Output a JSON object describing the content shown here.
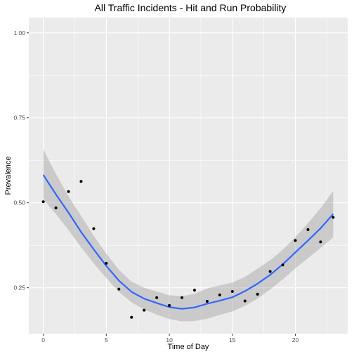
{
  "chart_data": {
    "type": "scatter",
    "title": "All Traffic Incidents - Hit and Run Probability",
    "xlabel": "Time of Day",
    "ylabel": "Prevalence",
    "xlim": [
      -1.15,
      24.15
    ],
    "ylim": [
      0.115,
      1.045
    ],
    "x_ticks": [
      0,
      5,
      10,
      15,
      20
    ],
    "x_tick_labels": [
      "0",
      "5",
      "10",
      "15",
      "20"
    ],
    "y_ticks": [
      0.25,
      0.5,
      0.75,
      1.0
    ],
    "y_tick_labels": [
      "0.25",
      "0.50",
      "0.75",
      "1.00"
    ],
    "grid": true,
    "points": {
      "x": [
        0,
        1,
        2,
        3,
        4,
        5,
        6,
        7,
        8,
        9,
        10,
        11,
        12,
        13,
        14,
        15,
        16,
        17,
        18,
        19,
        20,
        21,
        22,
        23
      ],
      "y": [
        0.503,
        0.485,
        0.533,
        0.563,
        0.424,
        0.322,
        0.246,
        0.163,
        0.184,
        0.221,
        0.198,
        0.221,
        0.243,
        0.21,
        0.229,
        0.239,
        0.211,
        0.231,
        0.298,
        0.317,
        0.389,
        0.421,
        0.385,
        0.457
      ]
    },
    "smooth": {
      "x": [
        0,
        1,
        2,
        3,
        4,
        5,
        6,
        7,
        8,
        9,
        10,
        11,
        12,
        13,
        14,
        15,
        16,
        17,
        18,
        19,
        20,
        21,
        22,
        23
      ],
      "y": [
        0.582,
        0.525,
        0.471,
        0.414,
        0.363,
        0.314,
        0.271,
        0.238,
        0.218,
        0.205,
        0.193,
        0.188,
        0.192,
        0.203,
        0.212,
        0.222,
        0.24,
        0.262,
        0.288,
        0.319,
        0.354,
        0.389,
        0.425,
        0.467
      ],
      "lower": [
        0.51,
        0.467,
        0.42,
        0.369,
        0.322,
        0.278,
        0.238,
        0.207,
        0.186,
        0.171,
        0.158,
        0.151,
        0.152,
        0.159,
        0.17,
        0.18,
        0.197,
        0.218,
        0.245,
        0.275,
        0.307,
        0.337,
        0.367,
        0.398
      ],
      "upper": [
        0.657,
        0.585,
        0.519,
        0.461,
        0.403,
        0.35,
        0.303,
        0.268,
        0.25,
        0.239,
        0.228,
        0.225,
        0.232,
        0.248,
        0.257,
        0.265,
        0.282,
        0.306,
        0.331,
        0.362,
        0.399,
        0.44,
        0.484,
        0.535
      ]
    },
    "colors": {
      "panel": "#ebebeb",
      "grid": "#ffffff",
      "line": "#3366ff",
      "ribbon": "#999999",
      "point": "#000000"
    }
  }
}
